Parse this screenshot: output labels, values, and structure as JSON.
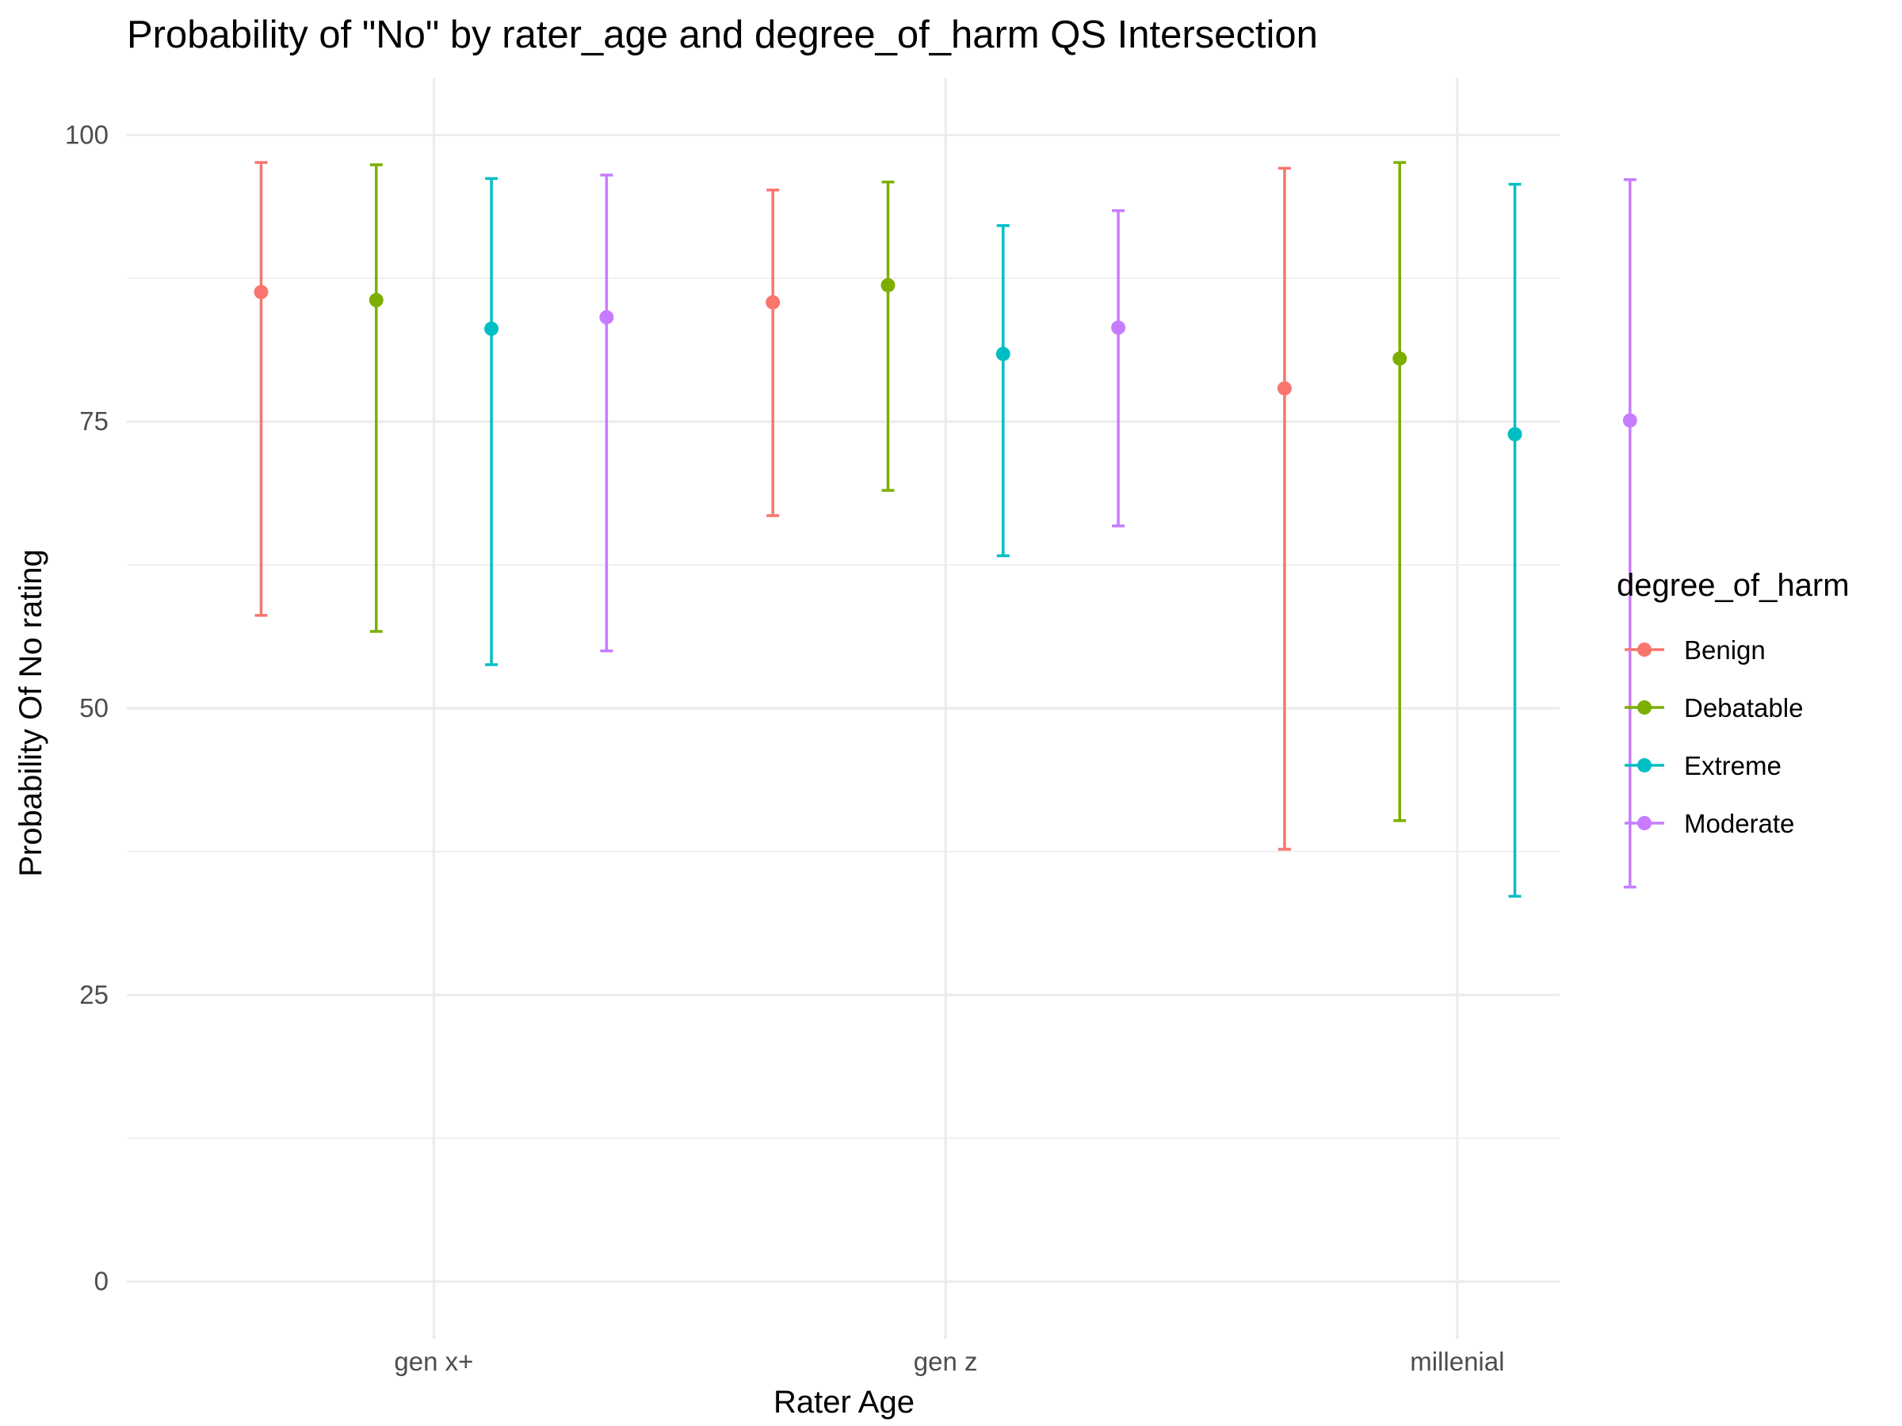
{
  "chart_data": {
    "type": "scatter",
    "title": "Probability of \"No\" by rater_age and  degree_of_harm  QS Intersection",
    "xlabel": "Rater Age",
    "ylabel": "Probability Of No rating",
    "categories": [
      "gen x+",
      "gen z",
      "millenial"
    ],
    "ylim": [
      -5,
      105
    ],
    "yticks": [
      0,
      25,
      50,
      75,
      100
    ],
    "grid": true,
    "legend": {
      "title": "degree_of_harm",
      "placement": "right"
    },
    "series": [
      {
        "name": "Benign",
        "color": "#F8766D",
        "values": [
          86.3,
          85.4,
          77.9
        ],
        "lower": [
          58.1,
          66.8,
          37.7
        ],
        "upper": [
          97.6,
          95.2,
          97.1
        ]
      },
      {
        "name": "Debatable",
        "color": "#7CAE00",
        "values": [
          85.6,
          86.9,
          80.5
        ],
        "lower": [
          56.7,
          69.0,
          40.2
        ],
        "upper": [
          97.4,
          95.9,
          97.6
        ]
      },
      {
        "name": "Extreme",
        "color": "#00BFC4",
        "values": [
          83.1,
          80.9,
          73.9
        ],
        "lower": [
          53.8,
          63.3,
          33.6
        ],
        "upper": [
          96.2,
          92.1,
          95.7
        ]
      },
      {
        "name": "Moderate",
        "color": "#C77CFF",
        "values": [
          84.1,
          83.2,
          75.1
        ],
        "lower": [
          55.0,
          65.9,
          34.4
        ],
        "upper": [
          96.5,
          93.4,
          96.1
        ]
      }
    ]
  }
}
